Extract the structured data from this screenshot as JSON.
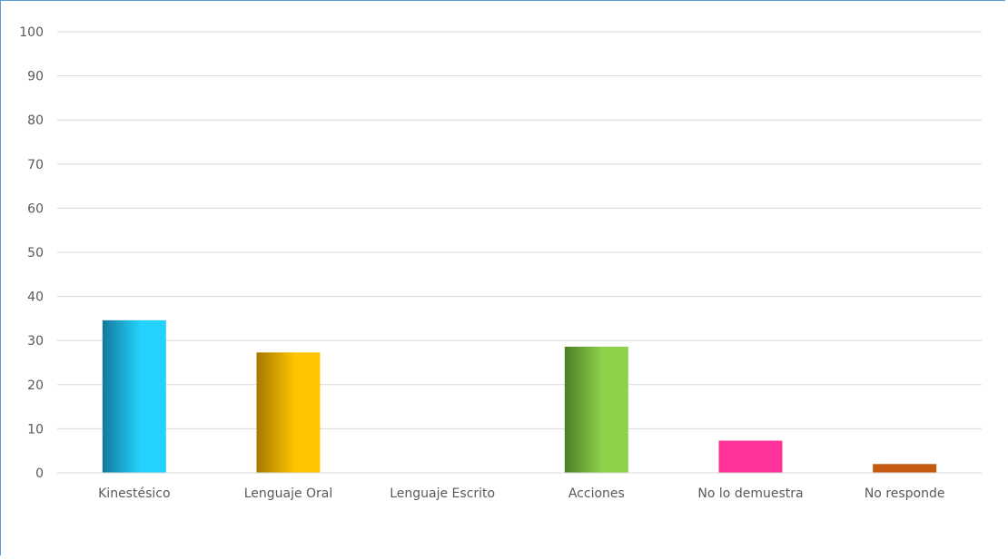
{
  "chart_data": {
    "type": "bar",
    "title": "",
    "xlabel": "",
    "ylabel": "",
    "categories": [
      "Kinestésico",
      "Lenguaje Oral",
      "Lenguaje Escrito",
      "Acciones",
      "No lo demuestra",
      "No responde"
    ],
    "values": [
      34.6,
      27.3,
      0,
      28.6,
      7.3,
      2.0
    ],
    "ylim": [
      0,
      100
    ],
    "yticks": [
      0,
      10,
      20,
      30,
      40,
      50,
      60,
      70,
      80,
      90,
      100
    ],
    "grid": true,
    "legend": "none",
    "colors": [
      [
        "#14789c",
        "#23d3fd"
      ],
      [
        "#a87800",
        "#fcc500"
      ],
      [
        "#888888",
        "#bbbbbb"
      ],
      [
        "#4a7f27",
        "#8ed24a"
      ],
      [
        "#ff3399",
        "#ff3399"
      ],
      [
        "#c55a11",
        "#c55a11"
      ]
    ]
  }
}
